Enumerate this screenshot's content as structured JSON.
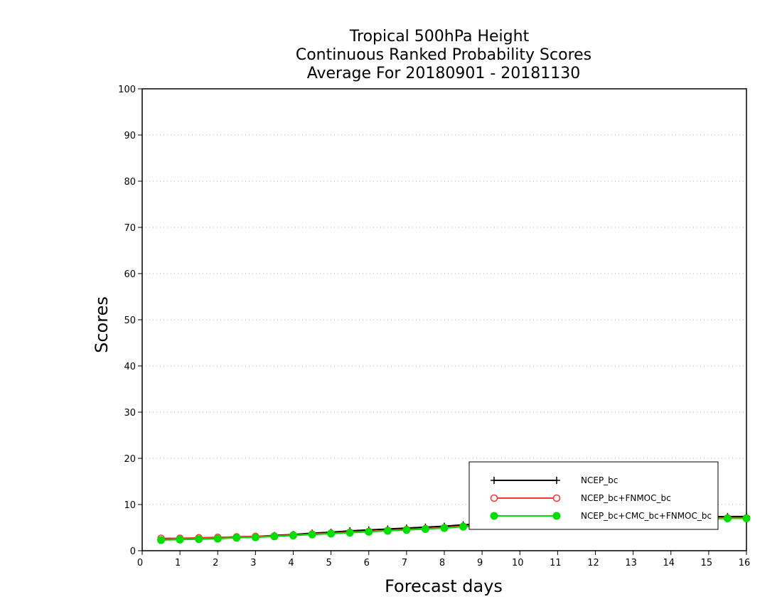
{
  "chart_data": {
    "type": "line",
    "title_lines": [
      "Tropical 500hPa Height",
      "Continuous Ranked Probability Scores",
      "Average For 20180901 - 20181130"
    ],
    "xlabel": "Forecast days",
    "ylabel": "Scores",
    "xlim": [
      0,
      16
    ],
    "ylim": [
      0,
      100
    ],
    "xticks": [
      0,
      1,
      2,
      3,
      4,
      5,
      6,
      7,
      8,
      9,
      10,
      11,
      12,
      13,
      14,
      15,
      16
    ],
    "yticks": [
      0,
      10,
      20,
      30,
      40,
      50,
      60,
      70,
      80,
      90,
      100
    ],
    "grid": "horizontal dotted",
    "legend_position": "bottom-right",
    "x": [
      0.5,
      1,
      1.5,
      2,
      2.5,
      3,
      3.5,
      4,
      4.5,
      5,
      5.5,
      6,
      6.5,
      7,
      7.5,
      8,
      8.5,
      9,
      9.5,
      10,
      10.5,
      11,
      11.5,
      12,
      12.5,
      13,
      13.5,
      14,
      14.5,
      15,
      15.5,
      16
    ],
    "series": [
      {
        "name": "NCEP_bc",
        "color": "#000000",
        "marker": "plus",
        "values": [
          2.6,
          2.6,
          2.7,
          2.8,
          3.0,
          3.1,
          3.3,
          3.5,
          3.8,
          4.0,
          4.3,
          4.5,
          4.7,
          4.9,
          5.1,
          5.3,
          5.6,
          5.8,
          6.0,
          6.2,
          6.4,
          6.5,
          6.7,
          6.8,
          6.9,
          7.0,
          7.1,
          7.2,
          7.3,
          7.3,
          7.4,
          7.4
        ]
      },
      {
        "name": "NCEP_bc+FNMOC_bc",
        "color": "#ff3333",
        "marker": "open-circle",
        "values": [
          2.7,
          2.7,
          2.8,
          2.9,
          3.0,
          3.1,
          3.2,
          3.4,
          3.6,
          3.8,
          4.0,
          4.2,
          4.4,
          4.6,
          4.8,
          5.0,
          5.3,
          5.5,
          5.7,
          5.9,
          6.1,
          6.2,
          6.4,
          6.5,
          6.6,
          6.7,
          6.8,
          6.9,
          7.0,
          7.0,
          7.1,
          7.1
        ]
      },
      {
        "name": "NCEP_bc+CMC_bc+FNMOC_bc",
        "color": "#00dd00",
        "marker": "filled-circle",
        "values": [
          2.3,
          2.4,
          2.5,
          2.6,
          2.8,
          2.9,
          3.1,
          3.3,
          3.5,
          3.7,
          3.9,
          4.1,
          4.3,
          4.5,
          4.7,
          4.9,
          5.2,
          5.4,
          5.6,
          5.8,
          6.0,
          6.1,
          6.3,
          6.4,
          6.5,
          6.6,
          6.7,
          6.8,
          6.9,
          6.9,
          7.0,
          7.0
        ]
      }
    ]
  }
}
